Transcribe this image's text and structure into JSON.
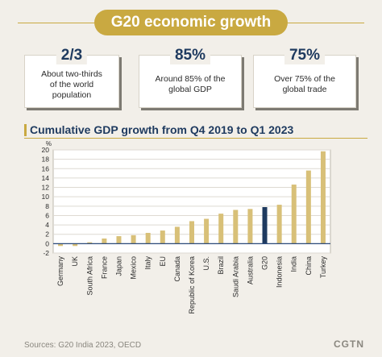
{
  "header": {
    "title": "G20 economic growth"
  },
  "stats": [
    {
      "value": "2/3",
      "desc": "About two-thirds of the world population"
    },
    {
      "value": "85%",
      "desc": "Around 85% of the global GDP"
    },
    {
      "value": "75%",
      "desc": "Over 75% of the global trade"
    }
  ],
  "footer": {
    "source": "Sources: G20 India 2023, OECD",
    "logo": "CGTN"
  },
  "colors": {
    "gold": "#c9a941",
    "bar": "#d8c078",
    "highlight": "#1e3a5f",
    "zero_line": "#2b4a7a"
  },
  "chart_data": {
    "type": "bar",
    "title": "Cumulative GDP growth from Q4 2019 to Q1 2023",
    "ylabel": "%",
    "xlabel": "",
    "ylim": [
      -2,
      20
    ],
    "yticks": [
      -2,
      0,
      2,
      4,
      6,
      8,
      10,
      12,
      14,
      16,
      18,
      20
    ],
    "grid": true,
    "highlight": "G20",
    "categories": [
      "Germany",
      "UK",
      "South Africa",
      "France",
      "Japan",
      "Mexico",
      "Italy",
      "EU",
      "Canada",
      "Republic of Korea",
      "U.S.",
      "Brazil",
      "Saudi Arabia",
      "Australia",
      "G20",
      "Indonesia",
      "India",
      "China",
      "Turkey"
    ],
    "values": [
      -0.5,
      -0.5,
      0.3,
      1.1,
      1.6,
      1.8,
      2.3,
      2.8,
      3.6,
      4.8,
      5.3,
      6.4,
      7.2,
      7.4,
      7.8,
      8.3,
      12.6,
      15.6,
      19.7
    ]
  }
}
